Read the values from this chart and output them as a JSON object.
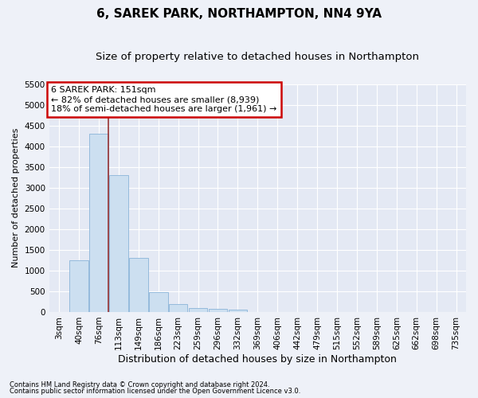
{
  "title": "6, SAREK PARK, NORTHAMPTON, NN4 9YA",
  "subtitle": "Size of property relative to detached houses in Northampton",
  "xlabel": "Distribution of detached houses by size in Northampton",
  "ylabel": "Number of detached properties",
  "footnote1": "Contains HM Land Registry data © Crown copyright and database right 2024.",
  "footnote2": "Contains public sector information licensed under the Open Government Licence v3.0.",
  "categories": [
    "3sqm",
    "40sqm",
    "76sqm",
    "113sqm",
    "149sqm",
    "186sqm",
    "223sqm",
    "259sqm",
    "296sqm",
    "332sqm",
    "369sqm",
    "406sqm",
    "442sqm",
    "479sqm",
    "515sqm",
    "552sqm",
    "589sqm",
    "625sqm",
    "662sqm",
    "698sqm",
    "735sqm"
  ],
  "values": [
    0,
    1250,
    4300,
    3300,
    1300,
    480,
    200,
    100,
    80,
    60,
    0,
    0,
    0,
    0,
    0,
    0,
    0,
    0,
    0,
    0,
    0
  ],
  "bar_color": "#ccdff0",
  "bar_edge_color": "#8ab4d8",
  "ylim": [
    0,
    5500
  ],
  "yticks": [
    0,
    500,
    1000,
    1500,
    2000,
    2500,
    3000,
    3500,
    4000,
    4500,
    5000,
    5500
  ],
  "annotation_text": "6 SAREK PARK: 151sqm\n← 82% of detached houses are smaller (8,939)\n18% of semi-detached houses are larger (1,961) →",
  "annotation_box_facecolor": "#ffffff",
  "annotation_box_edgecolor": "#cc0000",
  "vline_x": 3,
  "vline_color": "#993333",
  "background_color": "#eef1f8",
  "plot_bg_color": "#e4e9f4",
  "grid_color": "#ffffff",
  "title_fontsize": 11,
  "subtitle_fontsize": 9.5,
  "ylabel_fontsize": 8,
  "xlabel_fontsize": 9,
  "tick_fontsize": 7.5,
  "annot_fontsize": 8,
  "footnote_fontsize": 6
}
